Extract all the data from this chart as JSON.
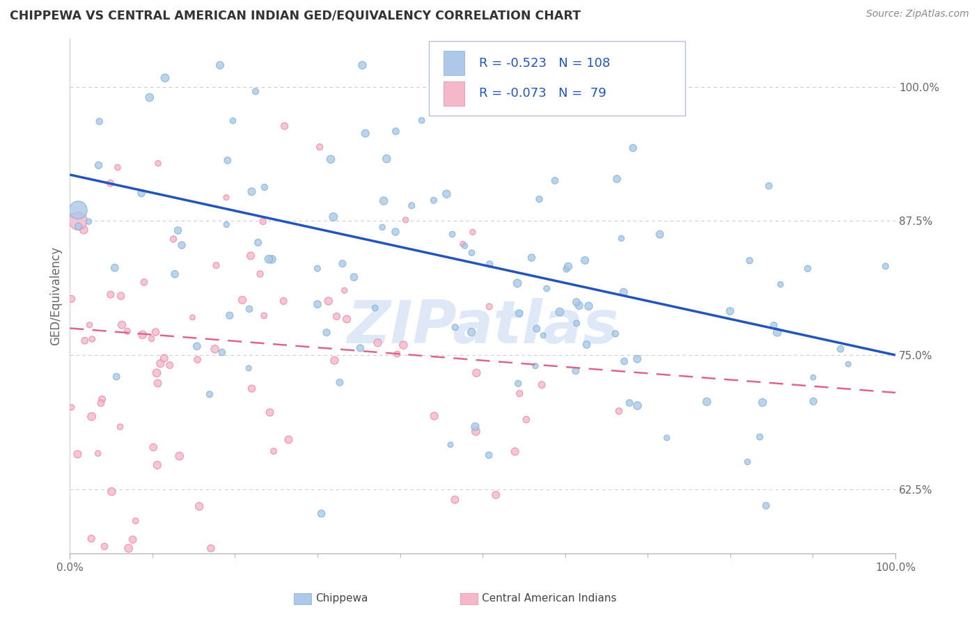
{
  "title": "CHIPPEWA VS CENTRAL AMERICAN INDIAN GED/EQUIVALENCY CORRELATION CHART",
  "source": "Source: ZipAtlas.com",
  "ylabel": "GED/Equivalency",
  "ytick_vals": [
    0.625,
    0.75,
    0.875,
    1.0
  ],
  "ytick_labels": [
    "62.5%",
    "75.0%",
    "87.5%",
    "100.0%"
  ],
  "xmin": 0.0,
  "xmax": 1.0,
  "ymin": 0.565,
  "ymax": 1.045,
  "legend_r1": "-0.523",
  "legend_n1": "108",
  "legend_r2": "-0.073",
  "legend_n2": " 79",
  "chippewa_color": "#adc8e8",
  "chippewa_edge": "#7aaed4",
  "central_color": "#f5b8cb",
  "central_edge": "#e882a0",
  "line_blue": "#2255bb",
  "line_pink": "#dd6688",
  "watermark_color": "#c8daf0",
  "legend_label1": "Chippewa",
  "legend_label2": "Central American Indians",
  "background_color": "#ffffff",
  "grid_color": "#cccccc",
  "title_color": "#333333",
  "axis_label_color": "#666666",
  "legend_text_color": "#2255bb",
  "blue_line_start_y": 0.918,
  "blue_line_end_y": 0.75,
  "pink_line_start_y": 0.775,
  "pink_line_end_y": 0.715
}
